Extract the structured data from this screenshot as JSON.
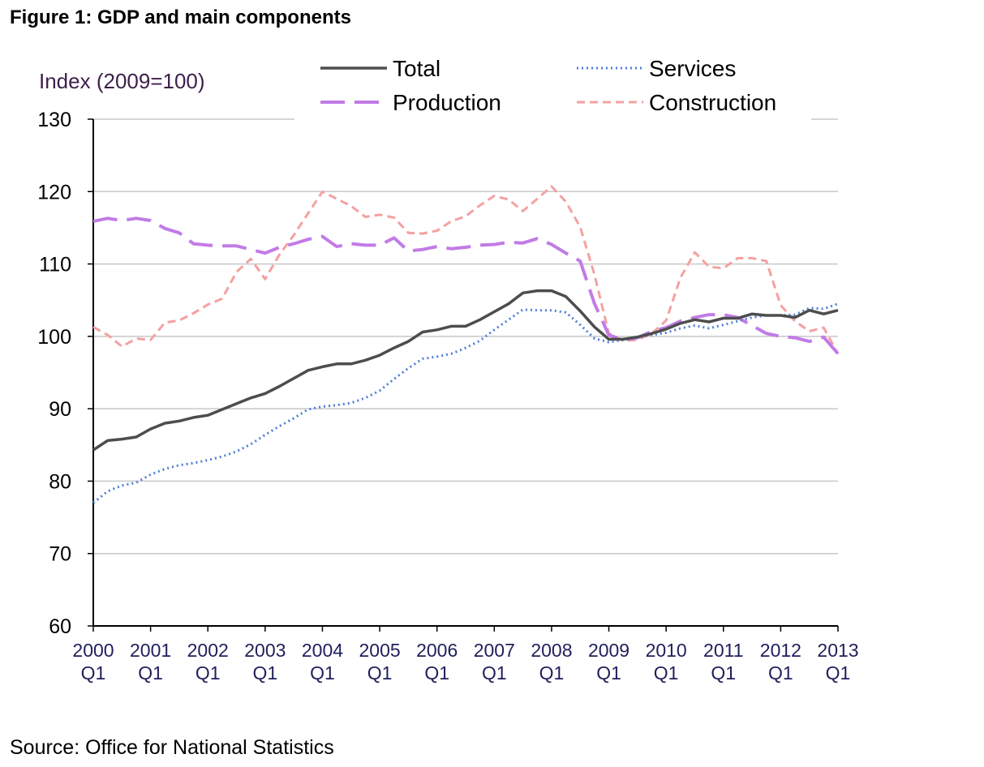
{
  "figure_title": "Figure 1: GDP and main components",
  "source": "Source: Office for National Statistics",
  "chart_data": {
    "type": "line",
    "ylabel": "Index (2009=100)",
    "ylim": [
      60,
      130
    ],
    "yticks": [
      60,
      70,
      80,
      90,
      100,
      110,
      120,
      130
    ],
    "grid": true,
    "legend_position": "top",
    "x_tick_labels": [
      [
        "2000",
        "Q1"
      ],
      [
        "2001",
        "Q1"
      ],
      [
        "2002",
        "Q1"
      ],
      [
        "2003",
        "Q1"
      ],
      [
        "2004",
        "Q1"
      ],
      [
        "2005",
        "Q1"
      ],
      [
        "2006",
        "Q1"
      ],
      [
        "2007",
        "Q1"
      ],
      [
        "2008",
        "Q1"
      ],
      [
        "2009",
        "Q1"
      ],
      [
        "2010",
        "Q1"
      ],
      [
        "2011",
        "Q1"
      ],
      [
        "2012",
        "Q1"
      ],
      [
        "2013",
        "Q1"
      ]
    ],
    "x": [
      "2000 Q1",
      "2000 Q2",
      "2000 Q3",
      "2000 Q4",
      "2001 Q1",
      "2001 Q2",
      "2001 Q3",
      "2001 Q4",
      "2002 Q1",
      "2002 Q2",
      "2002 Q3",
      "2002 Q4",
      "2003 Q1",
      "2003 Q2",
      "2003 Q3",
      "2003 Q4",
      "2004 Q1",
      "2004 Q2",
      "2004 Q3",
      "2004 Q4",
      "2005 Q1",
      "2005 Q2",
      "2005 Q3",
      "2005 Q4",
      "2006 Q1",
      "2006 Q2",
      "2006 Q3",
      "2006 Q4",
      "2007 Q1",
      "2007 Q2",
      "2007 Q3",
      "2007 Q4",
      "2008 Q1",
      "2008 Q2",
      "2008 Q3",
      "2008 Q4",
      "2009 Q1",
      "2009 Q2",
      "2009 Q3",
      "2009 Q4",
      "2010 Q1",
      "2010 Q2",
      "2010 Q3",
      "2010 Q4",
      "2011 Q1",
      "2011 Q2",
      "2011 Q3",
      "2011 Q4",
      "2012 Q1",
      "2012 Q2",
      "2012 Q3",
      "2012 Q4",
      "2013 Q1"
    ],
    "series": [
      {
        "name": "Total",
        "color": "#4d4d4d",
        "dash": "solid",
        "values": [
          84.3,
          85.6,
          85.8,
          86.1,
          87.2,
          88.0,
          88.3,
          88.8,
          89.1,
          89.9,
          90.7,
          91.5,
          92.1,
          93.1,
          94.2,
          95.3,
          95.8,
          96.2,
          96.2,
          96.7,
          97.4,
          98.4,
          99.3,
          100.6,
          100.9,
          101.4,
          101.4,
          102.3,
          103.4,
          104.5,
          106.0,
          106.3,
          106.3,
          105.5,
          103.5,
          101.3,
          99.6,
          99.6,
          99.9,
          100.4,
          101.0,
          101.8,
          102.3,
          102.0,
          102.5,
          102.5,
          103.1,
          102.9,
          102.9,
          102.6,
          103.6,
          103.1,
          103.6
        ]
      },
      {
        "name": "Services",
        "color": "#4f7ed9",
        "dash": "dotted",
        "values": [
          77.0,
          78.6,
          79.4,
          79.8,
          80.9,
          81.7,
          82.2,
          82.5,
          82.9,
          83.4,
          84.1,
          85.1,
          86.4,
          87.6,
          88.7,
          89.9,
          90.3,
          90.5,
          90.8,
          91.5,
          92.5,
          94.1,
          95.6,
          96.9,
          97.2,
          97.6,
          98.4,
          99.4,
          100.9,
          102.3,
          103.7,
          103.6,
          103.6,
          103.3,
          101.6,
          99.7,
          99.2,
          99.5,
          99.9,
          100.2,
          100.5,
          101.1,
          101.5,
          101.1,
          101.6,
          102.1,
          102.6,
          102.9,
          102.9,
          103.0,
          103.9,
          103.8,
          104.5
        ]
      },
      {
        "name": "Production",
        "color": "#c27be6",
        "dash": "long-dash",
        "values": [
          115.9,
          116.3,
          116.0,
          116.3,
          116.0,
          114.9,
          114.3,
          112.8,
          112.6,
          112.5,
          112.5,
          112.0,
          111.5,
          112.3,
          112.8,
          113.4,
          113.8,
          112.4,
          112.8,
          112.6,
          112.6,
          113.6,
          111.8,
          112.0,
          112.4,
          112.1,
          112.3,
          112.6,
          112.7,
          113.0,
          112.9,
          113.5,
          112.7,
          111.5,
          110.4,
          104.5,
          100.2,
          99.5,
          99.8,
          100.7,
          101.2,
          102.1,
          102.6,
          103.0,
          103.0,
          102.6,
          101.5,
          100.4,
          100.0,
          99.8,
          99.3,
          99.9,
          97.6
        ]
      },
      {
        "name": "Construction",
        "color": "#f4a1a1",
        "dash": "dashed",
        "values": [
          101.3,
          100.2,
          98.6,
          99.7,
          99.5,
          101.9,
          102.2,
          103.2,
          104.4,
          105.2,
          108.9,
          110.7,
          107.9,
          111.3,
          114.0,
          117.0,
          120.0,
          119.0,
          118.0,
          116.5,
          116.8,
          116.4,
          114.3,
          114.2,
          114.6,
          115.9,
          116.6,
          118.1,
          119.4,
          118.9,
          117.3,
          119.0,
          120.7,
          118.6,
          115.1,
          108.5,
          100.4,
          99.4,
          99.5,
          100.4,
          102.2,
          108.1,
          111.6,
          109.6,
          109.4,
          110.8,
          110.8,
          110.4,
          104.3,
          102.1,
          100.7,
          101.2,
          97.6
        ]
      }
    ]
  }
}
